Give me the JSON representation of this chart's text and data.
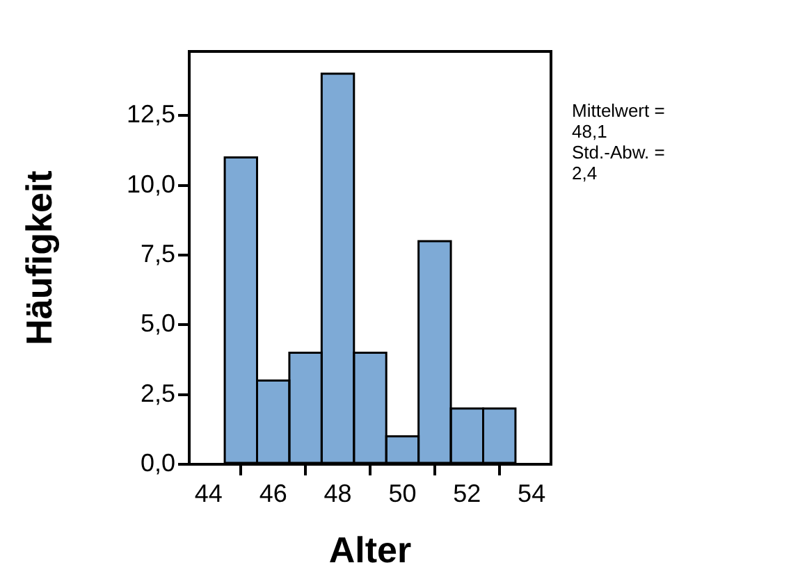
{
  "chart_data": {
    "type": "histogram",
    "xlabel": "Alter",
    "ylabel": "Häufigkeit",
    "bins": [
      44.5,
      45.5,
      46.5,
      47.5,
      48.5,
      49.5,
      50.5,
      51.5,
      52.5,
      53.5
    ],
    "values": [
      11,
      3,
      4,
      14,
      4,
      1,
      8,
      2,
      2
    ],
    "color": "#7eaad6",
    "xlim": [
      43.4,
      54.6
    ],
    "xticks": [
      44,
      46,
      48,
      50,
      52,
      54
    ],
    "ylim": [
      0,
      14.8
    ],
    "yticks": [
      {
        "value": 0,
        "label": "0,0"
      },
      {
        "value": 2.5,
        "label": "2,5"
      },
      {
        "value": 5,
        "label": "5,0"
      },
      {
        "value": 7.5,
        "label": "7,5"
      },
      {
        "value": 10,
        "label": "10,0"
      },
      {
        "value": 12.5,
        "label": "12,5"
      }
    ],
    "grid": false,
    "legend": false,
    "annotations": [
      "Mittelwert = 48,1",
      "Std.-Abw. = 2,4"
    ]
  }
}
